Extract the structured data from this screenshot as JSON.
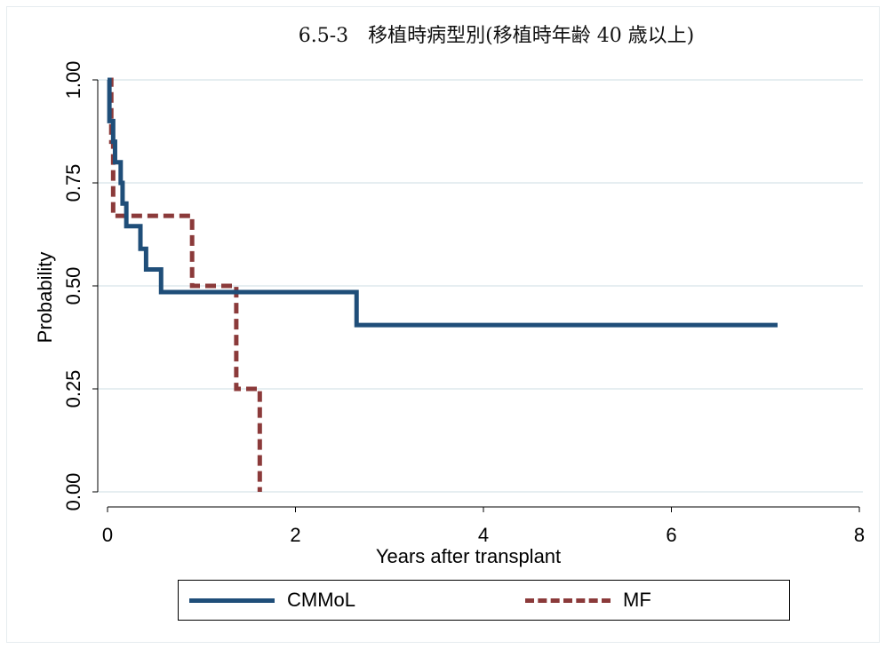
{
  "chart_data": {
    "type": "line",
    "title": "6.5-3　移植時病型別(移植時年齢 40 歳以上)",
    "xlabel": "Years after transplant",
    "ylabel": "Probability",
    "xlim": [
      0,
      8
    ],
    "ylim": [
      0,
      1
    ],
    "x_ticks": [
      "0",
      "2",
      "4",
      "6",
      "8"
    ],
    "x_tick_values": [
      0,
      2,
      4,
      6,
      8
    ],
    "y_ticks": [
      "0.00",
      "0.25",
      "0.50",
      "0.75",
      "1.00"
    ],
    "y_tick_values": [
      0,
      0.25,
      0.5,
      0.75,
      1.0
    ],
    "grid": "horizontal",
    "legend_position": "bottom",
    "series": [
      {
        "name": "CMMoL",
        "color": "#1f4e79",
        "style": "solid",
        "step": true,
        "points": [
          [
            0,
            1.0
          ],
          [
            0.02,
            0.9
          ],
          [
            0.06,
            0.85
          ],
          [
            0.08,
            0.8
          ],
          [
            0.14,
            0.75
          ],
          [
            0.16,
            0.7
          ],
          [
            0.2,
            0.645
          ],
          [
            0.35,
            0.59
          ],
          [
            0.41,
            0.54
          ],
          [
            0.57,
            0.485
          ],
          [
            2.65,
            0.405
          ],
          [
            7.13,
            0.405
          ]
        ]
      },
      {
        "name": "MF",
        "color": "#8b3a3a",
        "style": "dashed",
        "step": true,
        "points": [
          [
            0,
            1.0
          ],
          [
            0.04,
            0.85
          ],
          [
            0.06,
            0.67
          ],
          [
            0.9,
            0.5
          ],
          [
            1.37,
            0.25
          ],
          [
            1.62,
            0.0
          ]
        ]
      }
    ]
  }
}
